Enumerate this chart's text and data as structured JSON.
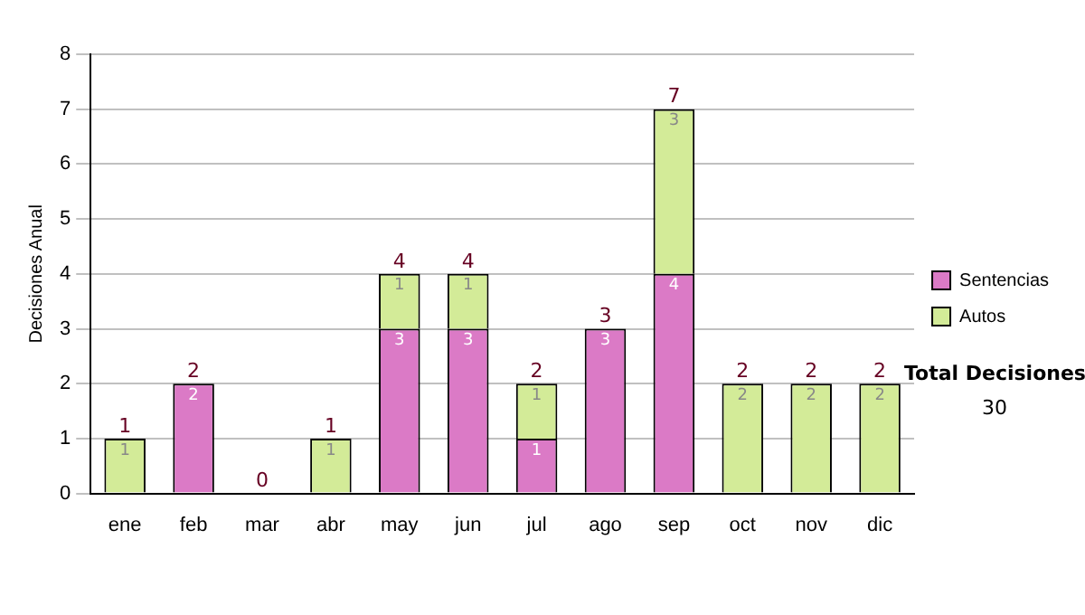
{
  "chart_data": {
    "type": "bar",
    "stacked": true,
    "ylabel": "Decisiones Anual",
    "categories": [
      "ene",
      "feb",
      "mar",
      "abr",
      "may",
      "jun",
      "jul",
      "ago",
      "sep",
      "oct",
      "nov",
      "dic"
    ],
    "series": [
      {
        "name": "Sentencias",
        "color": "#db7ac6",
        "values": [
          0,
          2,
          0,
          0,
          3,
          3,
          1,
          3,
          4,
          0,
          0,
          0
        ],
        "value_labels": [
          null,
          "2",
          null,
          null,
          "3",
          "3",
          "1",
          "3",
          "4",
          null,
          null,
          null
        ]
      },
      {
        "name": "Autos",
        "color": "#d3eb98",
        "values": [
          1,
          0,
          0,
          1,
          1,
          1,
          1,
          0,
          3,
          2,
          2,
          2
        ],
        "value_labels": [
          "1",
          null,
          null,
          "1",
          "1",
          "1",
          "1",
          null,
          "3",
          "2",
          "2",
          "2"
        ]
      }
    ],
    "totals": [
      "1",
      "2",
      "0",
      "1",
      "4",
      "4",
      "2",
      "3",
      "7",
      "2",
      "2",
      "2"
    ],
    "ylim": [
      0,
      8
    ],
    "yticks": [
      0,
      1,
      2,
      3,
      4,
      5,
      6,
      7,
      8
    ],
    "grid": "y",
    "legend": "right",
    "annotations": [
      "Total Decisiones",
      "30"
    ]
  }
}
